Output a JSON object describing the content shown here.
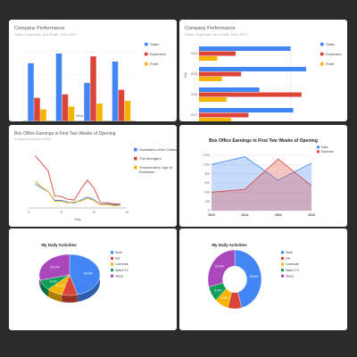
{
  "colors": {
    "blue": "#4285f4",
    "red": "#db4437",
    "yellow": "#f4b400",
    "green": "#0f9d58",
    "purple": "#ab47bc"
  },
  "chart_data": [
    {
      "id": "column-performance",
      "type": "bar",
      "title": "Company Performance",
      "subtitle": "Sales, Expenses, and Profit: 2014-2017",
      "categories": [
        "2014",
        "2015",
        "2016",
        "2017"
      ],
      "xlabel": "Year",
      "ylim": [
        0,
        1200
      ],
      "grid": true,
      "legend": "right",
      "series": [
        {
          "name": "Sales",
          "values": [
            1000,
            1170,
            660,
            1030
          ]
        },
        {
          "name": "Expenses",
          "values": [
            400,
            460,
            1120,
            540
          ]
        },
        {
          "name": "Profit",
          "values": [
            200,
            250,
            300,
            350
          ]
        }
      ]
    },
    {
      "id": "bar-performance",
      "type": "bar",
      "orientation": "horizontal",
      "title": "Company Performance",
      "subtitle": "Sales, Expenses, and Profit: 2014-2017",
      "categories": [
        "2014",
        "2015",
        "2016",
        "2017"
      ],
      "ylabel": "Year",
      "xticks": [
        "0",
        "1k"
      ],
      "xlim": [
        0,
        1200
      ],
      "grid": true,
      "legend": "right",
      "series": [
        {
          "name": "Sales",
          "values": [
            1000,
            1170,
            660,
            1030
          ]
        },
        {
          "name": "Expenses",
          "values": [
            400,
            460,
            1120,
            540
          ]
        },
        {
          "name": "Profit",
          "values": [
            200,
            250,
            300,
            350
          ]
        }
      ]
    },
    {
      "id": "line-box-office",
      "type": "line",
      "title": "Box Office Earnings in First Two Weeks of Opening",
      "subtitle": "in millions of dollars (USD)",
      "x": [
        1,
        2,
        3,
        4,
        5,
        6,
        7,
        8,
        9,
        10,
        11,
        12,
        13,
        14
      ],
      "xticks": [
        "0",
        "5",
        "10",
        "15"
      ],
      "xlabel": "Day",
      "xlim": [
        0,
        15
      ],
      "ylim": [
        0,
        90
      ],
      "legend": "right",
      "series": [
        {
          "name": "Guardians of the Galaxy",
          "values": [
            37.8,
            30.9,
            25.4,
            11.7,
            11.9,
            8.8,
            7.6,
            12.3,
            16.9,
            12.8,
            5.3,
            6.6,
            4.8,
            4.2
          ]
        },
        {
          "name": "The Avengers",
          "values": [
            80.8,
            69.5,
            57,
            18.8,
            17.6,
            13.6,
            12.3,
            29.2,
            42.9,
            30.9,
            7.9,
            8.4,
            6.3,
            6.2
          ]
        },
        {
          "name": "Transformers: Age of Extinction",
          "values": [
            41.8,
            32.4,
            25.7,
            10.5,
            10.4,
            7.7,
            9.6,
            10.6,
            14.8,
            11.6,
            4.7,
            5.2,
            3.6,
            3.4
          ]
        }
      ]
    },
    {
      "id": "area-box-office",
      "type": "area",
      "title": "Box Office Earnings in First Two Weeks of Opening",
      "categories": [
        "2013",
        "2014",
        "2015",
        "2016"
      ],
      "yticks": [
        "0",
        "200",
        "400",
        "600",
        "800",
        "1,000",
        "1,200"
      ],
      "ylim": [
        0,
        1200
      ],
      "grid": true,
      "legend": "top-right",
      "series": [
        {
          "name": "Sales",
          "values": [
            1000,
            1170,
            660,
            1030
          ]
        },
        {
          "name": "Expenses",
          "values": [
            400,
            460,
            1120,
            540
          ]
        }
      ]
    },
    {
      "id": "pie-activities-3d",
      "type": "pie",
      "style": "3d",
      "title": "My Daily Activities",
      "legend": "right",
      "labels": [
        "Work",
        "Eat",
        "Commute",
        "Watch TV",
        "Sleep"
      ],
      "values": [
        11,
        2,
        2,
        2,
        7
      ],
      "slice_labels": [
        "45.8%",
        "",
        "8.3%",
        "8.3%",
        "29.2%"
      ]
    },
    {
      "id": "donut-activities",
      "type": "pie",
      "style": "donut",
      "title": "My Daily Activities",
      "legend": "right",
      "labels": [
        "Work",
        "Eat",
        "Commute",
        "Watch TV",
        "Sleep"
      ],
      "values": [
        11,
        2,
        2,
        2,
        7
      ],
      "slice_labels": [
        "45.8%",
        "",
        "8.3%",
        "8.3%",
        "29.2%"
      ]
    }
  ]
}
